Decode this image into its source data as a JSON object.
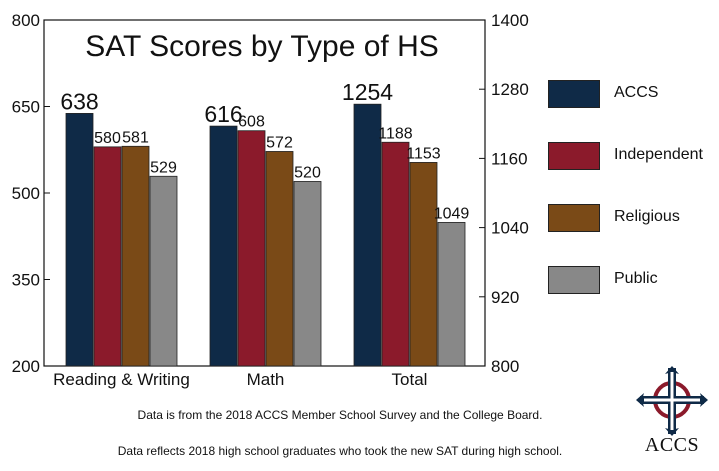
{
  "chart_data": {
    "type": "bar",
    "title": "SAT Scores by Type of HS",
    "categories": [
      "Reading & Writing",
      "Math",
      "Total"
    ],
    "series": [
      {
        "name": "ACCS",
        "values": [
          638,
          616,
          1254
        ],
        "color": "#0f2a47"
      },
      {
        "name": "Independent",
        "values": [
          580,
          608,
          1188
        ],
        "color": "#8b1a2b"
      },
      {
        "name": "Religious",
        "values": [
          581,
          572,
          1153
        ],
        "color": "#7a4a17"
      },
      {
        "name": "Public",
        "values": [
          529,
          520,
          1049
        ],
        "color": "#888888"
      }
    ],
    "axis_assignment": [
      "left",
      "left",
      "right"
    ],
    "y_left": {
      "range": [
        200,
        800
      ],
      "ticks": [
        "200",
        "350",
        "500",
        "650",
        "800"
      ]
    },
    "y_right": {
      "range": [
        800,
        1400
      ],
      "ticks": [
        "800",
        "920",
        "1040",
        "1160",
        "1280",
        "1400"
      ]
    },
    "legend_position": "right"
  },
  "notes": {
    "source": "Data is from the 2018 ACCS Member School Survey and the College Board.",
    "population": "Data reflects 2018 high school graduates who took the new SAT during high school."
  },
  "logo": {
    "text": "ACCS",
    "icon": "cross-emblem-icon"
  }
}
